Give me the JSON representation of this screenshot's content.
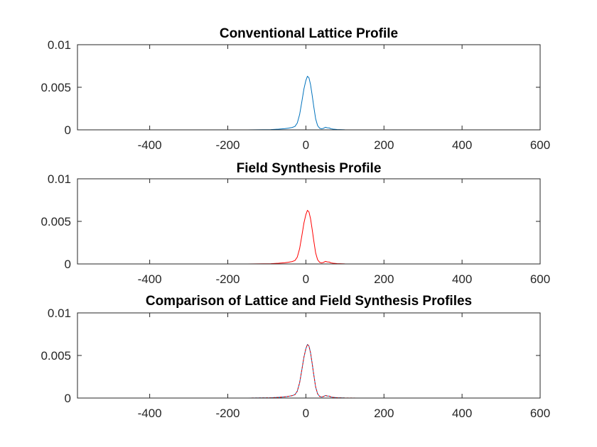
{
  "figure": {
    "background": "#ffffff",
    "axes_color": "#262626"
  },
  "chart_data": [
    {
      "type": "line",
      "title": "Conventional Lattice Profile",
      "xlim": [
        -585,
        600
      ],
      "ylim": [
        0,
        0.01
      ],
      "xticks": [
        -400,
        -200,
        0,
        200,
        400,
        600
      ],
      "xtick_labels": [
        "-400",
        "-200",
        "0",
        "200",
        "400",
        "600"
      ],
      "yticks": [
        0,
        0.005,
        0.01
      ],
      "ytick_labels": [
        "0",
        "0.005",
        "0.01"
      ],
      "grid": false,
      "series": [
        {
          "color": "#0072bd",
          "style": "solid",
          "x": [
            -585,
            -300,
            -150,
            -90,
            -70,
            -55,
            -45,
            -35,
            -28,
            -22,
            -16,
            -10,
            -5,
            0,
            4,
            8,
            12,
            16,
            20,
            25,
            30,
            35,
            40,
            45,
            50,
            55,
            60,
            65,
            70,
            80,
            100,
            150,
            300,
            600
          ],
          "y": [
            0,
            0,
            0,
            3e-05,
            8e-05,
            0.00014,
            0.0002,
            0.00028,
            0.0004,
            0.0008,
            0.0018,
            0.0034,
            0.0048,
            0.0058,
            0.0063,
            0.0061,
            0.0053,
            0.0041,
            0.0028,
            0.0013,
            0.0005,
            0.0002,
            0.00012,
            0.00018,
            0.0003,
            0.00024,
            0.00022,
            0.00012,
            8e-05,
            4e-05,
            1e-05,
            0,
            0,
            0
          ]
        }
      ]
    },
    {
      "type": "line",
      "title": "Field Synthesis Profile",
      "xlim": [
        -585,
        600
      ],
      "ylim": [
        0,
        0.01
      ],
      "xticks": [
        -400,
        -200,
        0,
        200,
        400,
        600
      ],
      "xtick_labels": [
        "-400",
        "-200",
        "0",
        "200",
        "400",
        "600"
      ],
      "yticks": [
        0,
        0.005,
        0.01
      ],
      "ytick_labels": [
        "0",
        "0.005",
        "0.01"
      ],
      "grid": false,
      "series": [
        {
          "color": "#ff0000",
          "style": "solid",
          "x": [
            -585,
            -300,
            -150,
            -90,
            -70,
            -55,
            -45,
            -35,
            -28,
            -22,
            -16,
            -10,
            -5,
            0,
            4,
            8,
            12,
            16,
            20,
            25,
            30,
            35,
            40,
            45,
            50,
            55,
            60,
            65,
            70,
            80,
            100,
            150,
            300,
            600
          ],
          "y": [
            0,
            0,
            0,
            3e-05,
            8e-05,
            0.00014,
            0.0002,
            0.00028,
            0.0004,
            0.0008,
            0.0018,
            0.0034,
            0.0048,
            0.0058,
            0.0063,
            0.0061,
            0.0053,
            0.0041,
            0.0028,
            0.0013,
            0.0005,
            0.0002,
            0.00012,
            0.00018,
            0.0003,
            0.00024,
            0.00022,
            0.00012,
            8e-05,
            4e-05,
            1e-05,
            0,
            0,
            0
          ]
        }
      ]
    },
    {
      "type": "line",
      "title": "Comparison of Lattice and Field Synthesis Profiles",
      "xlim": [
        -585,
        600
      ],
      "ylim": [
        0,
        0.01
      ],
      "xticks": [
        -400,
        -200,
        0,
        200,
        400,
        600
      ],
      "xtick_labels": [
        "-400",
        "-200",
        "0",
        "200",
        "400",
        "600"
      ],
      "yticks": [
        0,
        0.005,
        0.01
      ],
      "ytick_labels": [
        "0",
        "0.005",
        "0.01"
      ],
      "grid": false,
      "series": [
        {
          "color": "#0072bd",
          "style": "solid",
          "x": [
            -585,
            -300,
            -150,
            -90,
            -70,
            -55,
            -45,
            -35,
            -28,
            -22,
            -16,
            -10,
            -5,
            0,
            4,
            8,
            12,
            16,
            20,
            25,
            30,
            35,
            40,
            45,
            50,
            55,
            60,
            65,
            70,
            80,
            100,
            150,
            300,
            600
          ],
          "y": [
            0,
            0,
            0,
            3e-05,
            8e-05,
            0.00014,
            0.0002,
            0.00028,
            0.0004,
            0.0008,
            0.0018,
            0.0034,
            0.0048,
            0.0058,
            0.0063,
            0.0061,
            0.0053,
            0.0041,
            0.0028,
            0.0013,
            0.0005,
            0.0002,
            0.00012,
            0.00018,
            0.0003,
            0.00024,
            0.00022,
            0.00012,
            8e-05,
            4e-05,
            1e-05,
            0,
            0,
            0
          ]
        },
        {
          "color": "#ff0000",
          "style": "dashed",
          "x": [
            -585,
            -300,
            -150,
            -90,
            -70,
            -55,
            -45,
            -35,
            -28,
            -22,
            -16,
            -10,
            -5,
            0,
            4,
            8,
            12,
            16,
            20,
            25,
            30,
            35,
            40,
            45,
            50,
            55,
            60,
            65,
            70,
            80,
            100,
            150,
            300,
            600
          ],
          "y": [
            0,
            0,
            0,
            3e-05,
            8e-05,
            0.00014,
            0.0002,
            0.00028,
            0.0004,
            0.0008,
            0.0018,
            0.0034,
            0.0048,
            0.0058,
            0.0063,
            0.0061,
            0.0053,
            0.0041,
            0.0028,
            0.0013,
            0.0005,
            0.0002,
            0.00012,
            0.00018,
            0.0003,
            0.00024,
            0.00022,
            0.00012,
            8e-05,
            4e-05,
            1e-05,
            0,
            0,
            0
          ]
        }
      ]
    }
  ]
}
